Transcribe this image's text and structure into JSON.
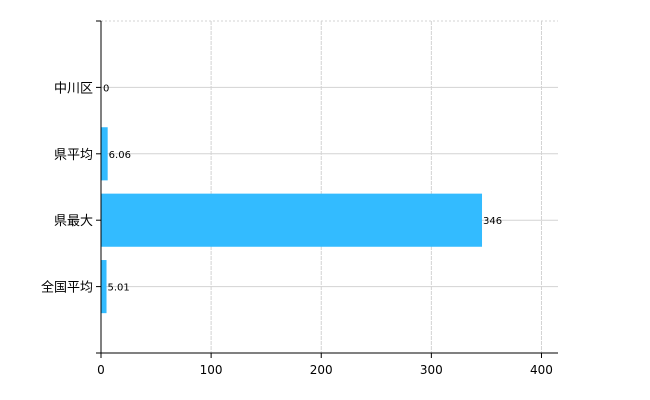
{
  "chart_data": {
    "type": "bar",
    "orientation": "horizontal",
    "categories": [
      "中川区",
      "県平均",
      "県最大",
      "全国平均"
    ],
    "values": [
      0,
      6.06,
      346,
      5.01
    ],
    "data_labels": [
      "0",
      "6.06",
      "346",
      "5.01"
    ],
    "title": "",
    "xlabel": "",
    "ylabel": "",
    "xlim": [
      0,
      415
    ],
    "xticks": [
      0,
      100,
      200,
      300,
      400
    ],
    "xtick_labels": [
      "0",
      "100",
      "200",
      "300",
      "400"
    ],
    "grid": true,
    "legend": "none",
    "colors": {
      "bar": "#33bbff",
      "grid": "#d3d3d3",
      "axis": "#000000"
    }
  }
}
